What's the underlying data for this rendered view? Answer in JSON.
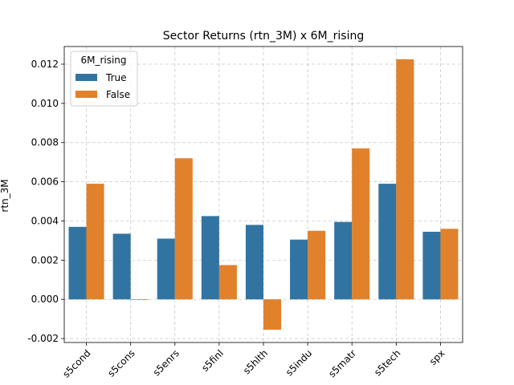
{
  "chart_data": {
    "type": "bar",
    "title": "Sector Returns (rtn_3M) x 6M_rising",
    "xlabel": "",
    "ylabel": "rtn_3M",
    "categories": [
      "s5cond",
      "s5cons",
      "s5enrs",
      "s5finl",
      "s5hlth",
      "s5indu",
      "s5matr",
      "s5tech",
      "spx"
    ],
    "series": [
      {
        "name": "True",
        "color": "#3274a1",
        "values": [
          0.0037,
          0.00335,
          0.0031,
          0.00425,
          0.0038,
          0.00305,
          0.00395,
          0.0059,
          0.00345
        ]
      },
      {
        "name": "False",
        "color": "#e1812c",
        "values": [
          0.0059,
          -3e-05,
          0.0072,
          0.00175,
          -0.00155,
          0.0035,
          0.0077,
          0.01225,
          0.0036
        ]
      }
    ],
    "ylim": [
      -0.0022,
      0.0129
    ],
    "yticks": [
      "-0.002",
      "0.000",
      "0.002",
      "0.004",
      "0.006",
      "0.008",
      "0.010",
      "0.012"
    ],
    "ytick_values": [
      -0.002,
      0,
      0.002,
      0.004,
      0.006,
      0.008,
      0.01,
      0.012
    ],
    "grid": true,
    "legend": {
      "title": "6M_rising",
      "placement": "top-left"
    }
  }
}
